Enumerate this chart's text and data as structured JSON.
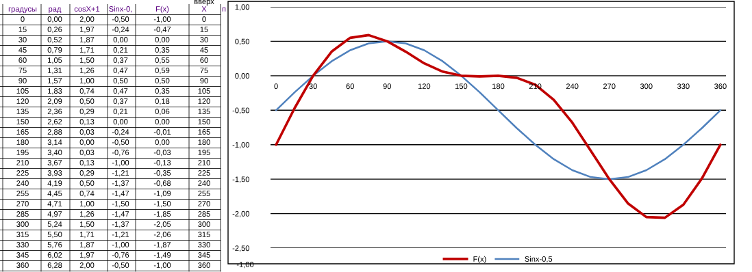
{
  "chart_data": {
    "type": "line",
    "categories": [
      "0",
      null,
      "30",
      null,
      "60",
      null,
      "90",
      null,
      "120",
      null,
      "150",
      null,
      "180",
      null,
      "210",
      null,
      "240",
      null,
      "270",
      null,
      "300",
      null,
      "330",
      null,
      "360"
    ],
    "series": [
      {
        "name": "F(x)",
        "color": "#c00000",
        "values": [
          -1.0,
          -0.47,
          0.0,
          0.35,
          0.55,
          0.59,
          0.5,
          0.35,
          0.18,
          0.06,
          0.0,
          -0.01,
          0.0,
          -0.03,
          -0.13,
          -0.35,
          -0.68,
          -1.09,
          -1.5,
          -1.85,
          -2.05,
          -2.06,
          -1.87,
          -1.49,
          -1.0
        ]
      },
      {
        "name": "Sinx-0,5",
        "color": "#4f81bd",
        "values": [
          -0.5,
          -0.24,
          0.0,
          0.21,
          0.37,
          0.47,
          0.5,
          0.47,
          0.37,
          0.21,
          0.0,
          -0.24,
          -0.5,
          -0.76,
          -1.0,
          -1.21,
          -1.37,
          -1.47,
          -1.5,
          -1.47,
          -1.37,
          -1.21,
          -1.0,
          -0.76,
          -0.5
        ]
      }
    ],
    "ylim": [
      -2.5,
      1.0
    ],
    "yticks": [
      {
        "value": -2.5,
        "label": "-2,50"
      },
      {
        "value": -2.0,
        "label": "-2,00"
      },
      {
        "value": -1.5,
        "label": "-1,50"
      },
      {
        "value": -1.0,
        "label": "-1,00"
      },
      {
        "value": -0.5,
        "label": "-0,50"
      },
      {
        "value": 0.0,
        "label": "0,00"
      },
      {
        "value": 0.5,
        "label": "0,50"
      },
      {
        "value": 1.0,
        "label": "1,00"
      }
    ],
    "grid": "y",
    "legend": "bottom",
    "annotations": [
      "\t\t\t\t\tвверх\t",
      "градусы\tрад\tcosX+1\tSinx-0,\tF(x)\tX\tп",
      "0\t0,00\t2,00\t-0,50\t-1,00\t0",
      "15\t0,26\t1,97\t-0,24\t-0,47\t15",
      "30\t0,52\t1,87\t0,00\t0,00\t30",
      "45\t0,79\t1,71\t0,21\t0,35\t45",
      "60\t1,05\t1,50\t0,37\t0,55\t60",
      "75\t1,31\t1,26\t0,47\t0,59\t75",
      "90\t1,57\t1,00\t0,50\t0,50\t90",
      "105\t1,83\t0,74\t0,47\t0,35\t105",
      "120\t2,09\t0,50\t0,37\t0,18\t120",
      "135\t2,36\t0,29\t0,21\t0,06\t135",
      "150\t2,62\t0,13\t0,00\t0,00\t150",
      "165\t2,88\t0,03\t-0,24\t-0,01\t165",
      "180\t3,14\t0,00\t-0,50\t0,00\t180",
      "195\t3,40\t0,03\t-0,76\t-0,03\t195",
      "210\t3,67\t0,13\t-1,00\t-0,13\t210",
      "225\t3,93\t0,29\t-1,21\t-0,35\t225",
      "240\t4,19\t0,50\t-1,37\t-0,68\t240",
      "255\t4,45\t0,74\t-1,47\t-1,09\t255",
      "270\t4,71\t1,00\t-1,50\t-1,50\t270",
      "285\t4,97\t1,26\t-1,47\t-1,85\t285",
      "300\t5,24\t1,50\t-1,37\t-2,05\t300",
      "315\t5,50\t1,71\t-1,21\t-2,06\t315",
      "330\t5,76\t1,87\t-1,00\t-1,87\t330",
      "345\t6,02\t1,97\t-0,76\t-1,49\t345",
      "360\t6,28\t2,00\t-0,50\t-1,00\t360",
      "-1,00"
    ]
  }
}
